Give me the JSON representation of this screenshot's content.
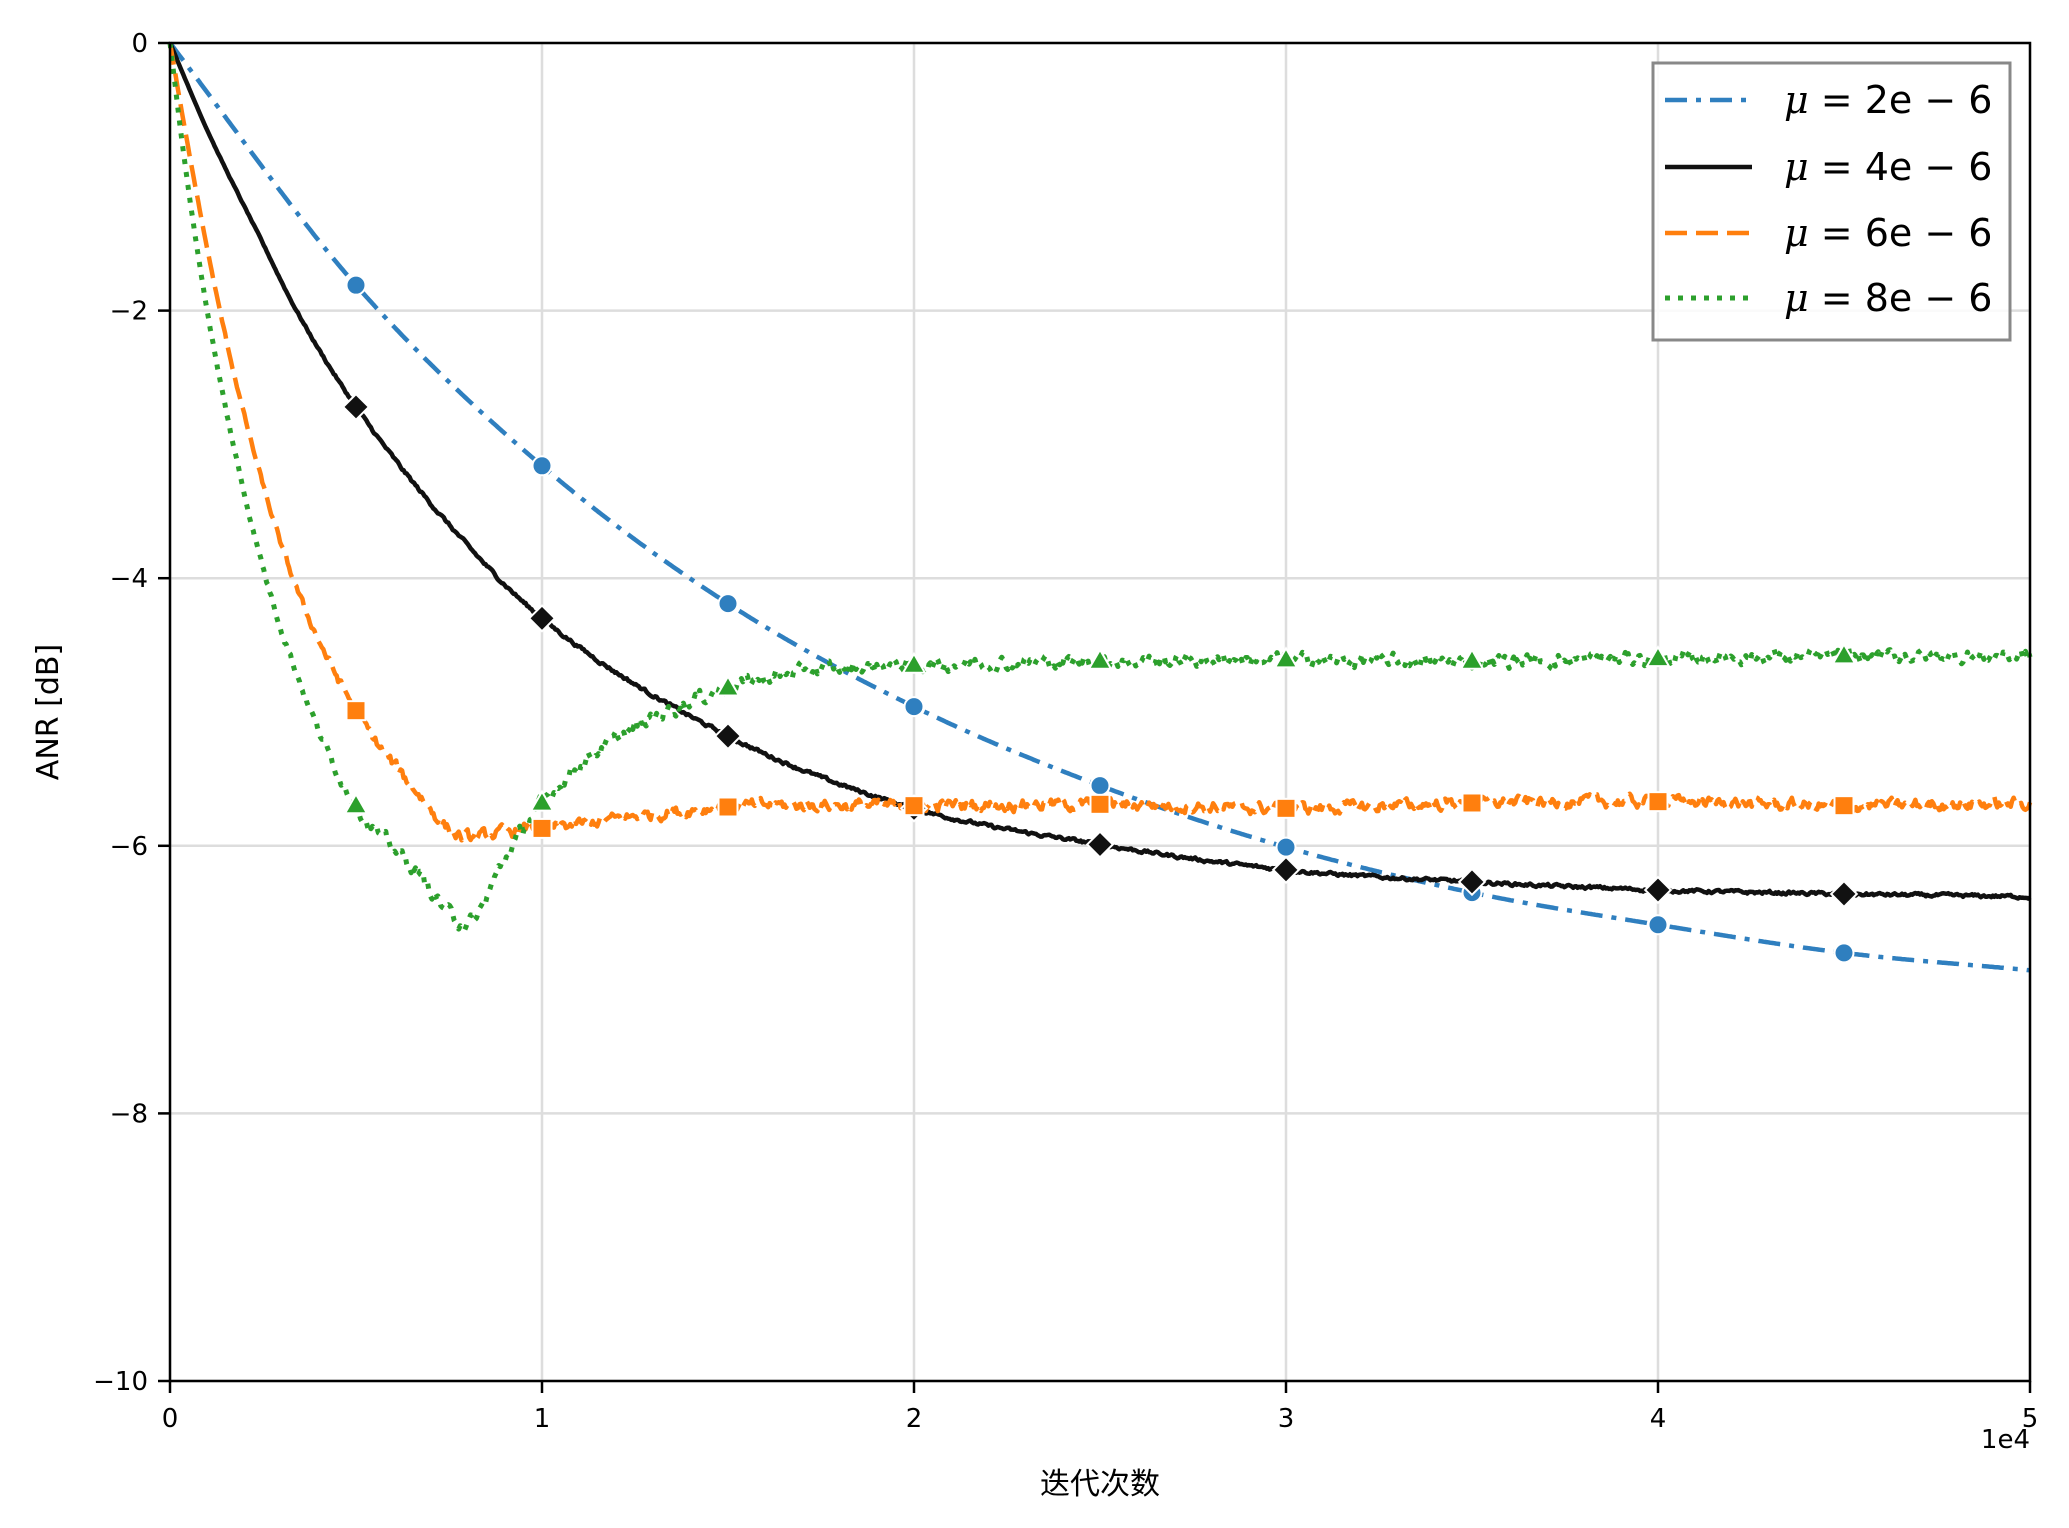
{
  "chart_data": {
    "type": "line",
    "title": "",
    "xlabel": "迭代次数",
    "ylabel": "ANR [dB]",
    "x_offset_label": "1e4",
    "xlim": [
      0,
      50000
    ],
    "ylim": [
      -10,
      0
    ],
    "x_ticks": [
      0,
      10000,
      20000,
      30000,
      40000,
      50000
    ],
    "x_tick_labels": [
      "0",
      "1",
      "2",
      "3",
      "4",
      "5"
    ],
    "y_ticks": [
      0,
      -2,
      -4,
      -6,
      -8,
      -10
    ],
    "y_tick_labels": [
      "0",
      "−2",
      "−4",
      "−6",
      "−8",
      "−10"
    ],
    "grid": true,
    "legend_position": "upper right",
    "series": [
      {
        "name": "μ = 2e − 6",
        "color": "#2f7fbf",
        "linestyle": "dashdot",
        "marker": "circle",
        "x": [
          0,
          5000,
          10000,
          15000,
          20000,
          25000,
          30000,
          35000,
          40000,
          45000,
          50000
        ],
        "values": [
          0,
          -1.81,
          -3.16,
          -4.19,
          -4.96,
          -5.55,
          -6.01,
          -6.35,
          -6.59,
          -6.8,
          -6.93
        ],
        "noise": 0
      },
      {
        "name": "μ = 4e − 6",
        "color": "#111111",
        "linestyle": "solid",
        "marker": "diamond",
        "x": [
          0,
          1000,
          2500,
          3400,
          5000,
          7500,
          10000,
          15000,
          20000,
          25000,
          30000,
          35000,
          40000,
          45000,
          50000
        ],
        "values": [
          0,
          -0.65,
          -1.5,
          -2.0,
          -2.72,
          -3.6,
          -4.3,
          -5.18,
          -5.72,
          -5.99,
          -6.18,
          -6.27,
          -6.33,
          -6.36,
          -6.38
        ],
        "noise": 0.01
      },
      {
        "name": "μ = 6e − 6",
        "color": "#ff7f0e",
        "linestyle": "dashed",
        "marker": "square",
        "x": [
          0,
          500,
          1340,
          2200,
          3300,
          5000,
          6500,
          8000,
          9000,
          10000,
          15000,
          20000,
          25000,
          30000,
          35000,
          40000,
          45000,
          50000
        ],
        "values": [
          0,
          -0.8,
          -2.0,
          -3.0,
          -4.0,
          -4.99,
          -5.55,
          -5.94,
          -5.9,
          -5.87,
          -5.71,
          -5.7,
          -5.69,
          -5.72,
          -5.68,
          -5.67,
          -5.7,
          -5.68
        ],
        "noise": 0.035
      },
      {
        "name": "μ = 8e − 6",
        "color": "#2ca02c",
        "linestyle": "dotted",
        "marker": "triangle",
        "x": [
          0,
          400,
          1000,
          1700,
          2580,
          3800,
          5000,
          6500,
          8000,
          9000,
          10000,
          12000,
          15000,
          17500,
          20000,
          25000,
          30000,
          35000,
          40000,
          45000,
          50000
        ],
        "values": [
          0,
          -0.9,
          -2.0,
          -3.0,
          -4.0,
          -5.0,
          -5.7,
          -6.15,
          -6.58,
          -6.1,
          -5.68,
          -5.2,
          -4.82,
          -4.68,
          -4.65,
          -4.62,
          -4.61,
          -4.62,
          -4.6,
          -4.58,
          -4.58
        ],
        "noise": 0.04
      }
    ],
    "marker_every": 5000
  },
  "legend": {
    "items": [
      {
        "mu": "μ",
        "rest": " = 2e − 6"
      },
      {
        "mu": "μ",
        "rest": " = 4e − 6"
      },
      {
        "mu": "μ",
        "rest": " = 6e − 6"
      },
      {
        "mu": "μ",
        "rest": " = 8e − 6"
      }
    ]
  }
}
